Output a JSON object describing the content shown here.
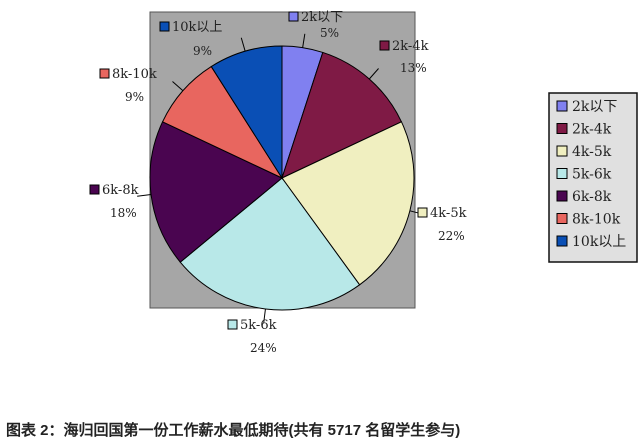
{
  "chart_data": {
    "type": "pie",
    "categories": [
      "2k以下",
      "2k-4k",
      "4k-5k",
      "5k-6k",
      "6k-8k",
      "8k-10k",
      "10k以上"
    ],
    "values": [
      5,
      13,
      22,
      24,
      18,
      9,
      9
    ],
    "value_labels": [
      "5%",
      "13%",
      "22%",
      "24%",
      "18%",
      "9%",
      "9%"
    ],
    "colors": [
      "#8080f0",
      "#7f1a45",
      "#f0efc0",
      "#b8e8e8",
      "#4a0550",
      "#e8665f",
      "#0a4fb5"
    ],
    "legend_position": "right",
    "plot_background": "#a6a6a6",
    "legend_background": "#e0e0e0",
    "start": "top",
    "direction": "clockwise"
  },
  "caption": "图表 2：海归回国第一份工作薪水最低期待(共有 5717 名留学生参与)"
}
